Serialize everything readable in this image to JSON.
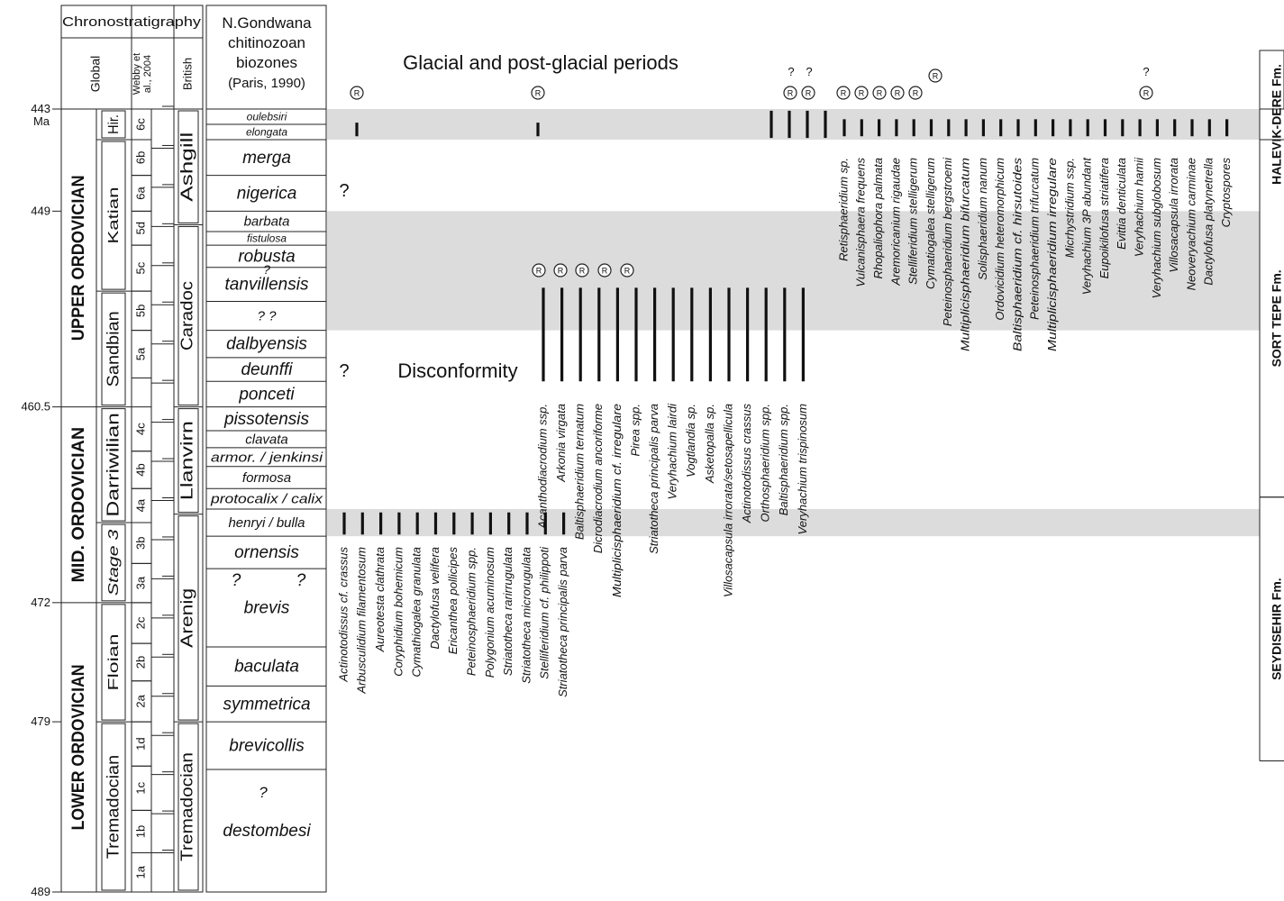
{
  "chronostrat": {
    "header": "Chronostratigraphy",
    "global": "Global",
    "webby": [
      "Webby et",
      "al., 2004"
    ],
    "british": "British",
    "ma_label": "Ma",
    "ages": [
      {
        "label": "443",
        "ma": 443
      },
      {
        "label": "449",
        "ma": 449
      },
      {
        "label": "460.5",
        "ma": 460.5
      },
      {
        "label": "472",
        "ma": 472
      },
      {
        "label": "479",
        "ma": 479
      },
      {
        "label": "489",
        "ma": 489
      }
    ],
    "series": [
      {
        "label": "UPPER ORDOVICIAN",
        "from": 443,
        "to": 460.5
      },
      {
        "label": "MID. ORDOVICIAN",
        "from": 460.5,
        "to": 472
      },
      {
        "label": "LOWER ORDOVICIAN",
        "from": 472,
        "to": 489
      }
    ],
    "stages": [
      {
        "label": "Hir.",
        "from": 443,
        "to": 444.8
      },
      {
        "label": "Katian",
        "from": 444.8,
        "to": 453.7
      },
      {
        "label": "Sandbian",
        "from": 453.7,
        "to": 460.5
      },
      {
        "label": "Darriwilian",
        "from": 460.5,
        "to": 467.3
      },
      {
        "label": "Stage 3",
        "from": 467.3,
        "to": 472
      },
      {
        "label": "Floian",
        "from": 472,
        "to": 479
      },
      {
        "label": "Tremadocian",
        "from": 479,
        "to": 489
      }
    ],
    "slices": [
      {
        "label": "6c",
        "from": 443,
        "to": 444.8
      },
      {
        "label": "6b",
        "from": 444.8,
        "to": 446.9
      },
      {
        "label": "6a",
        "from": 446.9,
        "to": 449
      },
      {
        "label": "5d",
        "from": 449,
        "to": 451
      },
      {
        "label": "5c",
        "from": 451,
        "to": 453.7
      },
      {
        "label": "5b",
        "from": 453.7,
        "to": 456
      },
      {
        "label": "5a",
        "from": 456,
        "to": 458.8
      },
      {
        "label": "4c",
        "from": 460.5,
        "to": 463.1
      },
      {
        "label": "4b",
        "from": 463.1,
        "to": 465.3
      },
      {
        "label": "4a",
        "from": 465.3,
        "to": 467.3
      },
      {
        "label": "3b",
        "from": 467.3,
        "to": 469.7
      },
      {
        "label": "3a",
        "from": 469.7,
        "to": 472
      },
      {
        "label": "2c",
        "from": 472,
        "to": 474.4
      },
      {
        "label": "2b",
        "from": 474.4,
        "to": 476.6
      },
      {
        "label": "2a",
        "from": 476.6,
        "to": 479
      },
      {
        "label": "1d",
        "from": 479,
        "to": 481.6
      },
      {
        "label": "1c",
        "from": 481.6,
        "to": 484.2
      },
      {
        "label": "1b",
        "from": 484.2,
        "to": 486.7
      },
      {
        "label": "1a",
        "from": 486.7,
        "to": 489
      }
    ],
    "british_series": [
      {
        "label": "Ashgill",
        "from": 443,
        "to": 449.8
      },
      {
        "label": "Caradoc",
        "from": 449.8,
        "to": 460.5
      },
      {
        "label": "Llanvirn",
        "from": 460.5,
        "to": 466.8
      },
      {
        "label": "Arenig",
        "from": 466.8,
        "to": 479
      },
      {
        "label": "Tremadocian",
        "from": 479,
        "to": 489
      }
    ]
  },
  "biozones": {
    "header": [
      "N.Gondwana",
      "chitinozoan",
      "biozones",
      "(Paris, 1990)"
    ],
    "zones": [
      {
        "label": "oulebsiri",
        "from": 443,
        "to": 443.9,
        "size": "small"
      },
      {
        "label": "elongata",
        "from": 443.9,
        "to": 444.8,
        "size": "small"
      },
      {
        "label": "merga",
        "from": 444.8,
        "to": 446.9,
        "size": "large"
      },
      {
        "label": "nigerica",
        "from": 446.9,
        "to": 449,
        "size": "large"
      },
      {
        "label": "barbata",
        "from": 449,
        "to": 450.2,
        "size": "medium"
      },
      {
        "label": "fistulosa",
        "from": 450.2,
        "to": 451,
        "size": "small"
      },
      {
        "label": "robusta",
        "from": 451,
        "to": 452.3,
        "size": "large"
      },
      {
        "label": "tanvillensis",
        "from": 452.3,
        "to": 454.3,
        "size": "large"
      },
      {
        "label": "?        ?",
        "from": 454.3,
        "to": 456,
        "size": "medium"
      },
      {
        "label": "dalbyensis",
        "from": 456,
        "to": 457.6,
        "size": "large"
      },
      {
        "label": "deunffi",
        "from": 457.6,
        "to": 459,
        "size": "large"
      },
      {
        "label": "ponceti",
        "from": 459,
        "to": 460.5,
        "size": "large"
      },
      {
        "label": "pissotensis",
        "from": 460.5,
        "to": 461.9,
        "size": "large"
      },
      {
        "label": "clavata",
        "from": 461.9,
        "to": 462.9,
        "size": "medium"
      },
      {
        "label": "armor. / jenkinsi",
        "from": 462.9,
        "to": 464,
        "size": "medium"
      },
      {
        "label": "formosa",
        "from": 464,
        "to": 465.3,
        "size": "medium"
      },
      {
        "label": "protocalix / calix",
        "from": 465.3,
        "to": 466.5,
        "size": "medium"
      },
      {
        "label": "henryi / bulla",
        "from": 466.5,
        "to": 468.1,
        "size": "medium"
      },
      {
        "label": "ornensis",
        "from": 468.1,
        "to": 470,
        "size": "large"
      },
      {
        "label": "brevis",
        "from": 470,
        "to": 474.6,
        "size": "large"
      },
      {
        "label": "baculata",
        "from": 474.6,
        "to": 476.9,
        "size": "large"
      },
      {
        "label": "symmetrica",
        "from": 476.9,
        "to": 479,
        "size": "large"
      },
      {
        "label": "brevicollis",
        "from": 479,
        "to": 481.8,
        "size": "large"
      },
      {
        "label": "destombesi",
        "from": 481.8,
        "to": 489,
        "size": "large"
      }
    ],
    "question_marks": [
      "?",
      "?",
      "?",
      "?"
    ]
  },
  "titles": {
    "glacial": "Glacial and post-glacial periods",
    "disconformity": "Disconformity",
    "question": "?",
    "reworked_symbol": "R"
  },
  "bands": [
    {
      "from": 443,
      "to": 444.8
    },
    {
      "from": 449,
      "to": 456
    },
    {
      "from": 466.5,
      "to": 468.1
    }
  ],
  "taxa": [
    {
      "name": "Actinotodissus cf. crassus",
      "group": "A"
    },
    {
      "name": "Arbusculidium filamentosum",
      "group": "A"
    },
    {
      "name": "Aureotesta clathrata",
      "group": "A"
    },
    {
      "name": "Coryphidium bohemicum",
      "group": "A"
    },
    {
      "name": "Cymathiogalea granulata",
      "group": "A"
    },
    {
      "name": "Dactylofusa velifera",
      "group": "A"
    },
    {
      "name": "Ericanthea pollicipes",
      "group": "A"
    },
    {
      "name": "Peteinosphaeridium spp.",
      "group": "A"
    },
    {
      "name": "Polygonium acuminosum",
      "group": "A"
    },
    {
      "name": "Striatotheca rarirrugulata",
      "group": "A"
    },
    {
      "name": "Striatotheca microrugulata",
      "group": "A"
    },
    {
      "name": "Stelliferidium cf. philippoti",
      "group": "A"
    },
    {
      "name": "Striatotheca principalis parva",
      "group": "A"
    },
    {
      "name": "Acanthodiacrodium ssp.",
      "group": "B"
    },
    {
      "name": "Arkonia virgata",
      "group": "B"
    },
    {
      "name": "Baltisphaeridium ternatum",
      "group": "B"
    },
    {
      "name": "Dicrodiacrodium ancoriforme",
      "group": "B"
    },
    {
      "name": "Multiplicisphaeridium cf. irregulare",
      "group": "B"
    },
    {
      "name": "Pirea spp.",
      "group": "B"
    },
    {
      "name": "Striatotheca principalis parva",
      "group": "B"
    },
    {
      "name": "Veryhachium lairdi",
      "group": "B"
    },
    {
      "name": "Vogtlandia sp.",
      "group": "B"
    },
    {
      "name": "Asketopalla sp.",
      "group": "B"
    },
    {
      "name": "Villosacapsula irrorata/setosapellicula",
      "group": "B"
    },
    {
      "name": "Actinotodissus crassus",
      "group": "B"
    },
    {
      "name": "Orthosphaeridium spp.",
      "group": "B"
    },
    {
      "name": "Baltisphaeridium spp.",
      "group": "B"
    },
    {
      "name": "Veryhachium trispinosum",
      "group": "B"
    },
    {
      "name": "Retisphaeridium sp.",
      "group": "C"
    },
    {
      "name": "Vulcanisphaera frequens",
      "group": "C"
    },
    {
      "name": "Rhopaliophora palmata",
      "group": "C"
    },
    {
      "name": "Aremoricanium rigaudae",
      "group": "C"
    },
    {
      "name": "Stelliferidium stelligerum",
      "group": "C"
    },
    {
      "name": "Cymatiogalea stelligerum",
      "group": "C"
    },
    {
      "name": "Peteinosphaeridium bergstroemi",
      "group": "C"
    },
    {
      "name": "Multiplicisphaeridium bifurcatum",
      "group": "C"
    },
    {
      "name": "Solisphaeridium nanum",
      "group": "C"
    },
    {
      "name": "Ordovicidium heteromorphicum",
      "group": "C"
    },
    {
      "name": "Baltisphaeridium cf. hirsutoides",
      "group": "C"
    },
    {
      "name": "Peteinosphaeridium trifurcatum",
      "group": "C"
    },
    {
      "name": "Multiplicisphaeridium irregulare",
      "group": "C"
    },
    {
      "name": "Micrhystridium ssp.",
      "group": "C"
    },
    {
      "name": "Veryhachium 3P abundant",
      "group": "C"
    },
    {
      "name": "Eupoikilofusa striatifera",
      "group": "C"
    },
    {
      "name": "Evittia denticulata",
      "group": "C"
    },
    {
      "name": "Veryhachium hamii",
      "group": "C"
    },
    {
      "name": "Veryhachium subglobosum",
      "group": "C"
    },
    {
      "name": "Villosacapsula irrorata",
      "group": "C"
    },
    {
      "name": "Neoveryachium carminae",
      "group": "C"
    },
    {
      "name": "Dactylofusa platynetrella",
      "group": "C"
    },
    {
      "name": "Cryptospores",
      "group": "C"
    }
  ],
  "formations": [
    {
      "label": "HALEVIK-DERE Fm.",
      "from": 443,
      "to": 444.8
    },
    {
      "label": "SORT TEPE Fm.",
      "from": 444.8,
      "to": 465.8
    },
    {
      "label": "SEYDISEHIR Fm.",
      "from": 465.8,
      "to": 481.3
    }
  ]
}
